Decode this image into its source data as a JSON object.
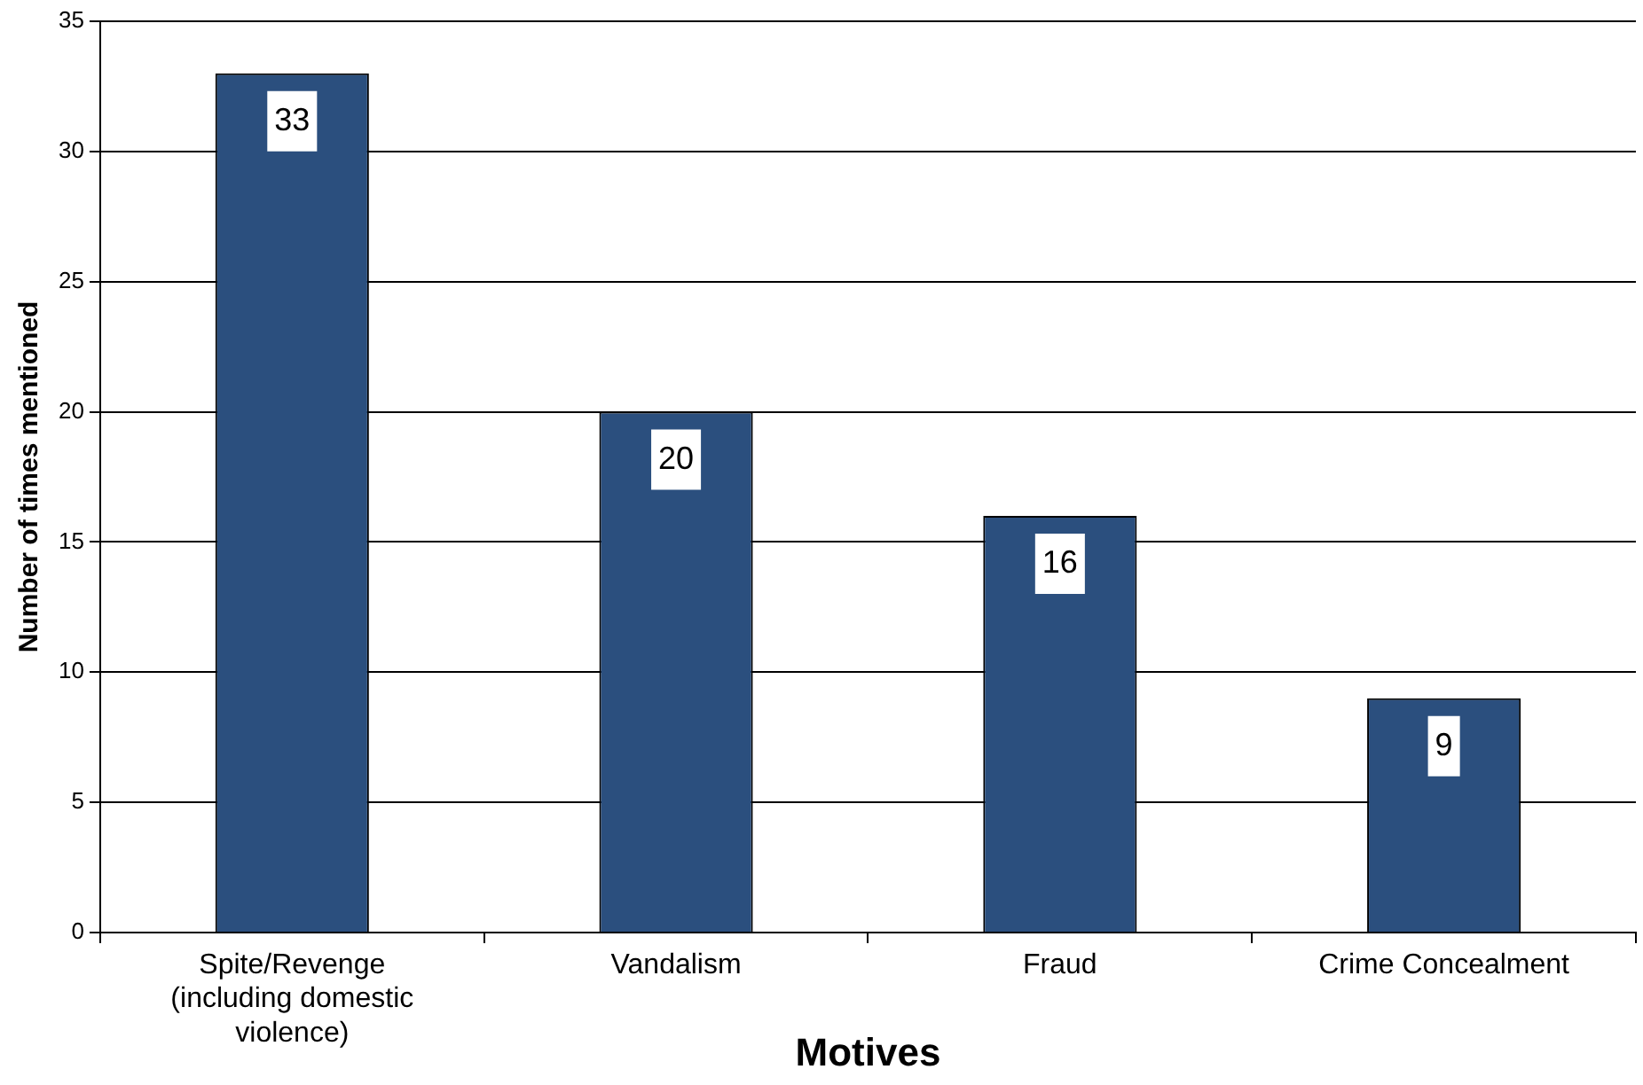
{
  "chart_data": {
    "type": "bar",
    "xlabel": "Motives",
    "ylabel": "Number of times mentioned",
    "categories": [
      "Spite/Revenge (including domestic violence)",
      "Vandalism",
      "Fraud",
      "Crime Concealment"
    ],
    "values": [
      33,
      20,
      16,
      9
    ],
    "color": "#2b4f7e",
    "ylim": [
      0,
      35
    ],
    "yticks": [
      0,
      5,
      10,
      15,
      20,
      25,
      30,
      35
    ],
    "grid": "y",
    "data_labels": true
  }
}
